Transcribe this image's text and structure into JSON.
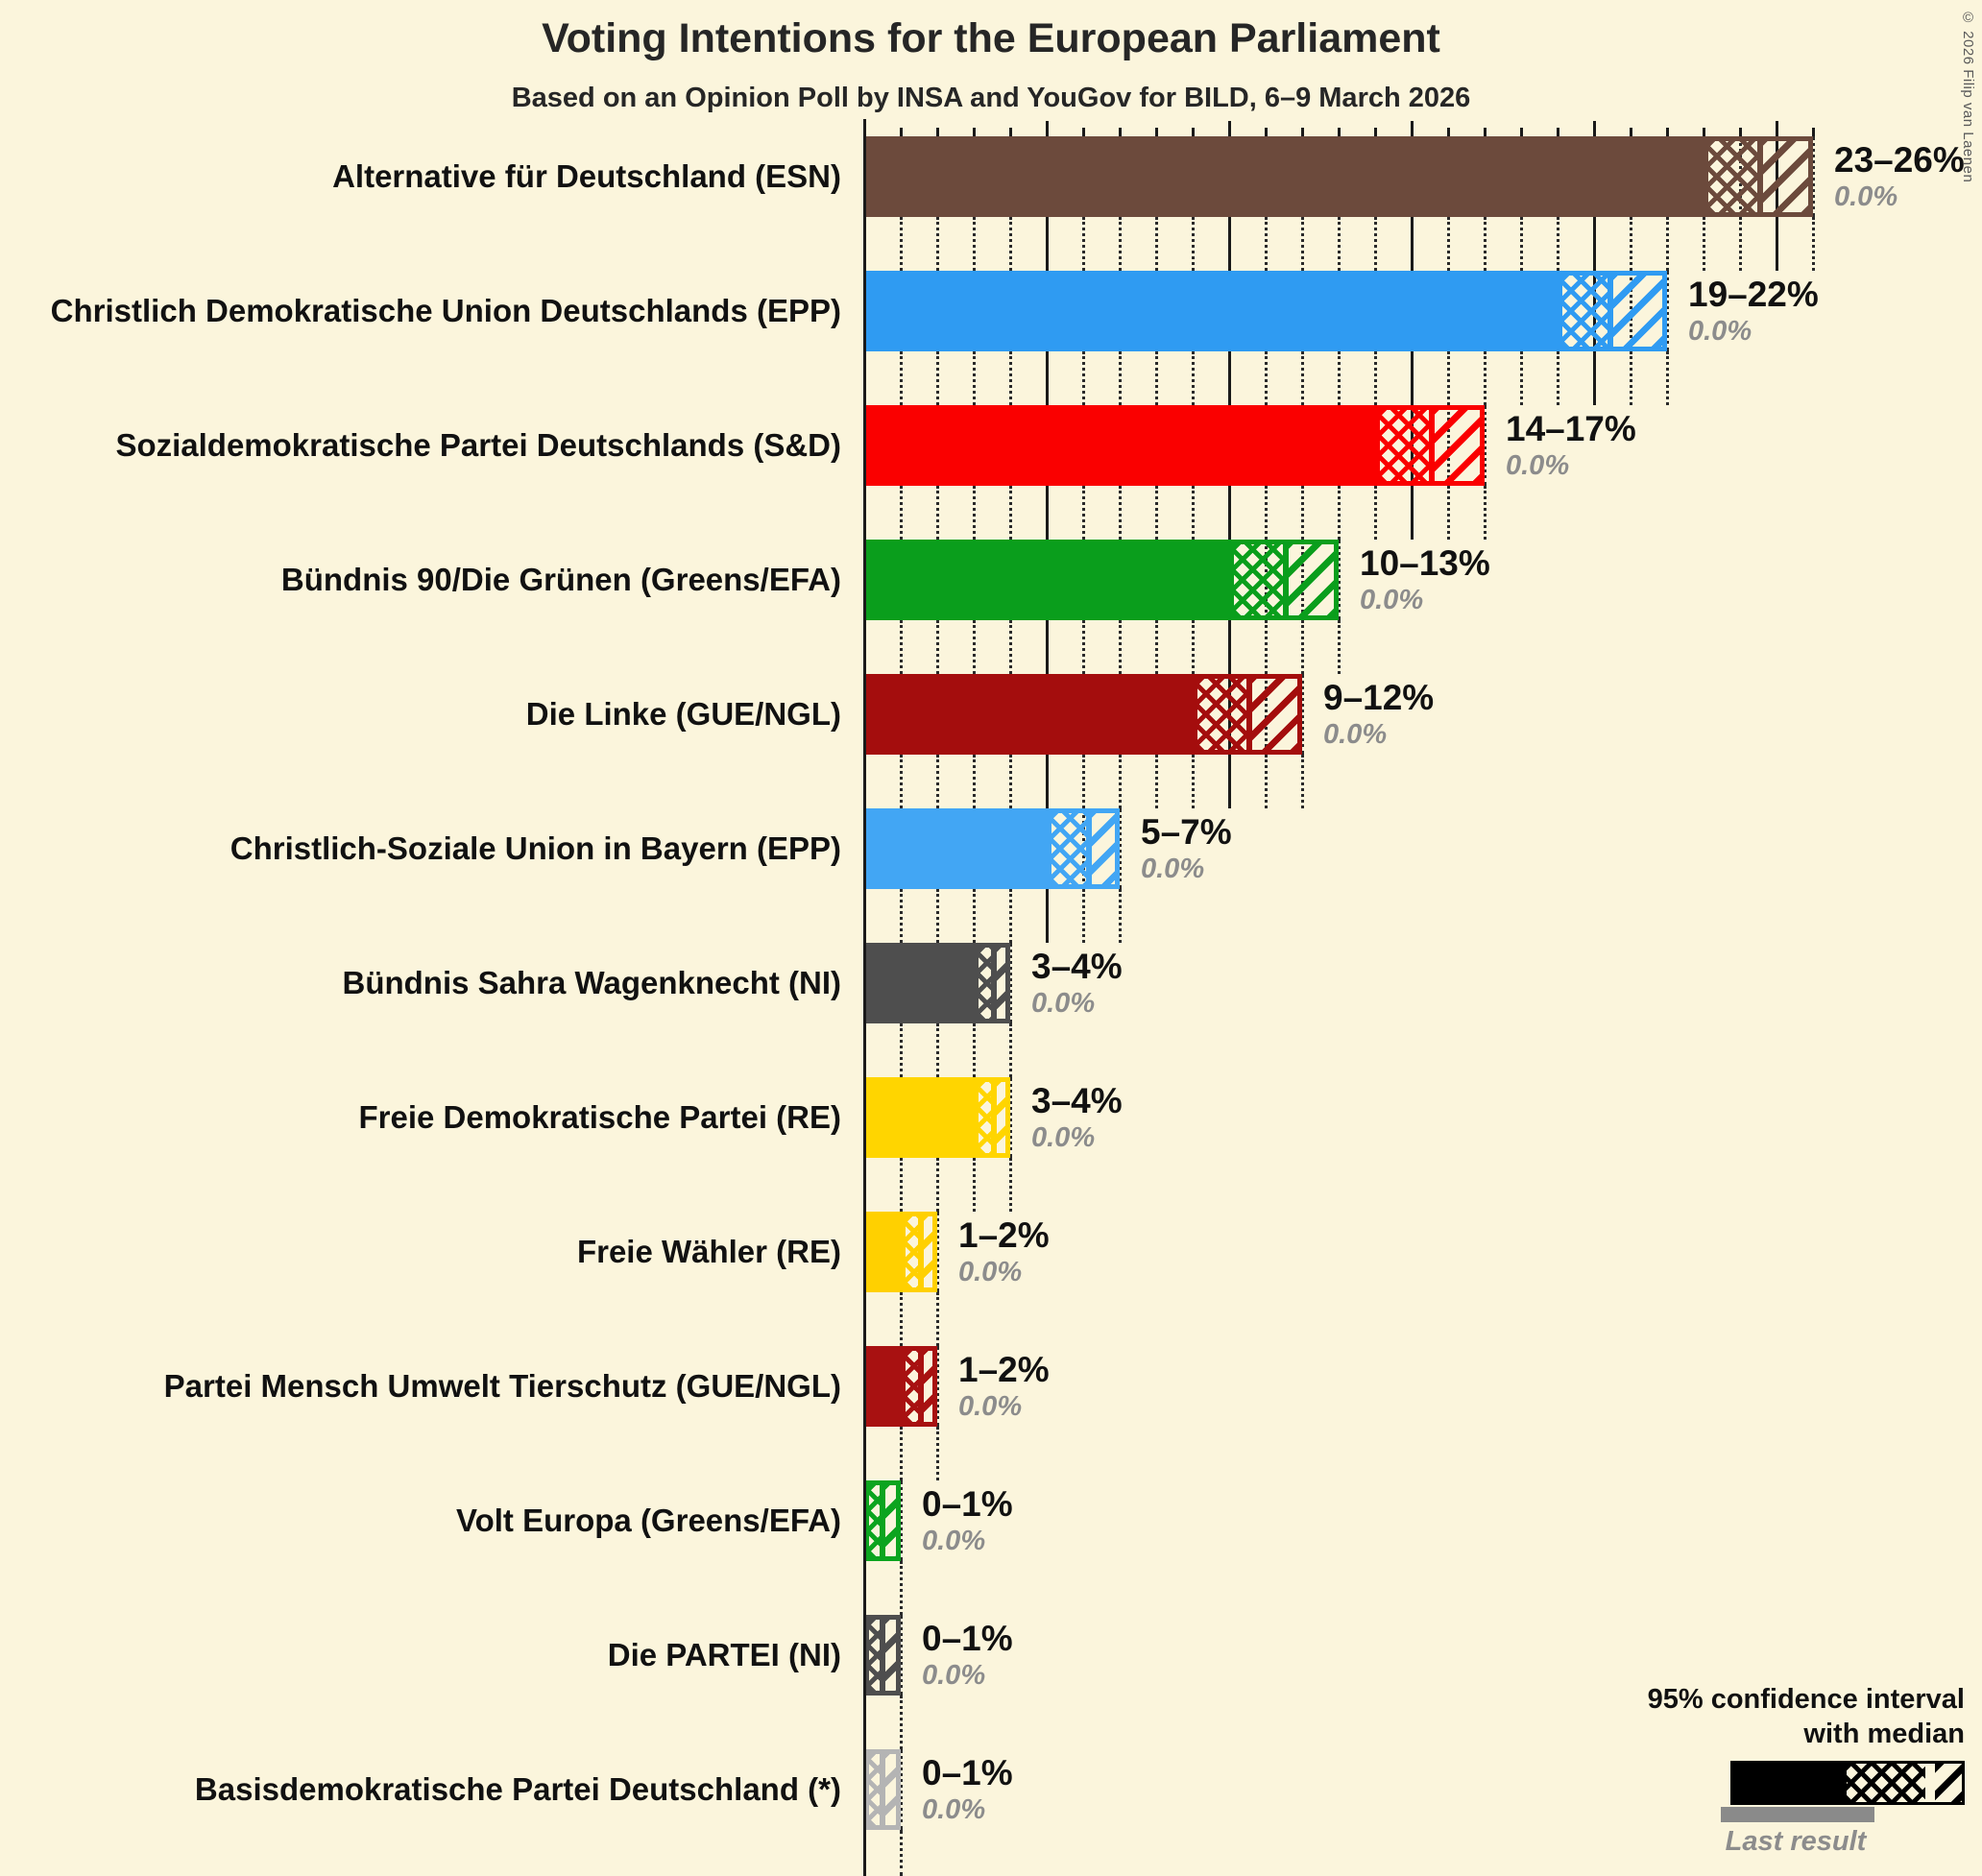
{
  "page": {
    "background": "#FBF5DC",
    "copyright": "© 2026 Filip van Laenen"
  },
  "header": {
    "title": "Voting Intentions for the European Parliament",
    "subtitle": "Based on an Opinion Poll by INSA and YouGov for BILD, 6–9 March 2026"
  },
  "legend": {
    "line1": "95% confidence interval",
    "line2": "with median",
    "last_result": "Last result",
    "bar_color": "#000000",
    "last_result_color": "#8A8A8A"
  },
  "chart_data": {
    "type": "bar",
    "orientation": "horizontal",
    "title": "Voting Intentions for the European Parliament",
    "subtitle": "Based on an Opinion Poll by INSA and YouGov for BILD, 6–9 March 2026",
    "unit": "%",
    "x_axis": {
      "min": 0,
      "max": 26.6,
      "minor_tick": 1,
      "major_tick": 5,
      "tick_labels": false
    },
    "bar_style_note": "solid = up to CI low, crosshatch = CI low to median, diagonal = median to CI high",
    "categories": [
      "Alternative für Deutschland (ESN)",
      "Christlich Demokratische Union Deutschlands (EPP)",
      "Sozialdemokratische Partei Deutschlands (S&D)",
      "Bündnis 90/Die Grünen (Greens/EFA)",
      "Die Linke (GUE/NGL)",
      "Christlich-Soziale Union in Bayern (EPP)",
      "Bündnis Sahra Wagenknecht (NI)",
      "Freie Demokratische Partei (RE)",
      "Freie Wähler (RE)",
      "Partei Mensch Umwelt Tierschutz (GUE/NGL)",
      "Volt Europa (Greens/EFA)",
      "Die PARTEI (NI)",
      "Basisdemokratische Partei Deutschland (*)"
    ],
    "parties": [
      {
        "label": "Alternative für Deutschland (ESN)",
        "color": "#6C4A3C",
        "ci_low": 23,
        "ci_high": 26,
        "median": 24.5,
        "ci_label": "23–26%",
        "last_result": 0.0,
        "last_label": "0.0%"
      },
      {
        "label": "Christlich Demokratische Union Deutschlands (EPP)",
        "color": "#2F9BF2",
        "ci_low": 19,
        "ci_high": 22,
        "median": 20.4,
        "ci_label": "19–22%",
        "last_result": 0.0,
        "last_label": "0.0%"
      },
      {
        "label": "Sozialdemokratische Partei Deutschlands (S&D)",
        "color": "#FA0000",
        "ci_low": 14,
        "ci_high": 17,
        "median": 15.5,
        "ci_label": "14–17%",
        "last_result": 0.0,
        "last_label": "0.0%"
      },
      {
        "label": "Bündnis 90/Die Grünen (Greens/EFA)",
        "color": "#0A9E1C",
        "ci_low": 10,
        "ci_high": 13,
        "median": 11.5,
        "ci_label": "10–13%",
        "last_result": 0.0,
        "last_label": "0.0%"
      },
      {
        "label": "Die Linke (GUE/NGL)",
        "color": "#A40D0D",
        "ci_low": 9,
        "ci_high": 12,
        "median": 10.5,
        "ci_label": "9–12%",
        "last_result": 0.0,
        "last_label": "0.0%"
      },
      {
        "label": "Christlich-Soziale Union in Bayern (EPP)",
        "color": "#42A6F4",
        "ci_low": 5,
        "ci_high": 7,
        "median": 6.1,
        "ci_label": "5–7%",
        "last_result": 0.0,
        "last_label": "0.0%"
      },
      {
        "label": "Bündnis Sahra Wagenknecht (NI)",
        "color": "#4E4E4E",
        "ci_low": 3,
        "ci_high": 4,
        "median": 3.5,
        "ci_label": "3–4%",
        "last_result": 0.0,
        "last_label": "0.0%"
      },
      {
        "label": "Freie Demokratische Partei (RE)",
        "color": "#FFD500",
        "ci_low": 3,
        "ci_high": 4,
        "median": 3.5,
        "ci_label": "3–4%",
        "last_result": 0.0,
        "last_label": "0.0%"
      },
      {
        "label": "Freie Wähler (RE)",
        "color": "#FFD000",
        "ci_low": 1,
        "ci_high": 2,
        "median": 1.5,
        "ci_label": "1–2%",
        "last_result": 0.0,
        "last_label": "0.0%"
      },
      {
        "label": "Partei Mensch Umwelt Tierschutz (GUE/NGL)",
        "color": "#A81111",
        "ci_low": 1,
        "ci_high": 2,
        "median": 1.5,
        "ci_label": "1–2%",
        "last_result": 0.0,
        "last_label": "0.0%"
      },
      {
        "label": "Volt Europa (Greens/EFA)",
        "color": "#0CA41F",
        "ci_low": 0,
        "ci_high": 1,
        "median": 0.45,
        "ci_label": "0–1%",
        "last_result": 0.0,
        "last_label": "0.0%"
      },
      {
        "label": "Die PARTEI (NI)",
        "color": "#4E4E4E",
        "ci_low": 0,
        "ci_high": 1,
        "median": 0.45,
        "ci_label": "0–1%",
        "last_result": 0.0,
        "last_label": "0.0%"
      },
      {
        "label": "Basisdemokratische Partei Deutschland (*)",
        "color": "#B4B4B4",
        "ci_low": 0,
        "ci_high": 1,
        "median": 0.45,
        "ci_label": "0–1%",
        "last_result": 0.0,
        "last_label": "0.0%"
      }
    ],
    "legend": {
      "position": "bottom-right",
      "entries": [
        "95% confidence interval with median",
        "Last result"
      ]
    },
    "grid": {
      "minor": "dotted every 1%",
      "major": "solid every 5%"
    }
  }
}
